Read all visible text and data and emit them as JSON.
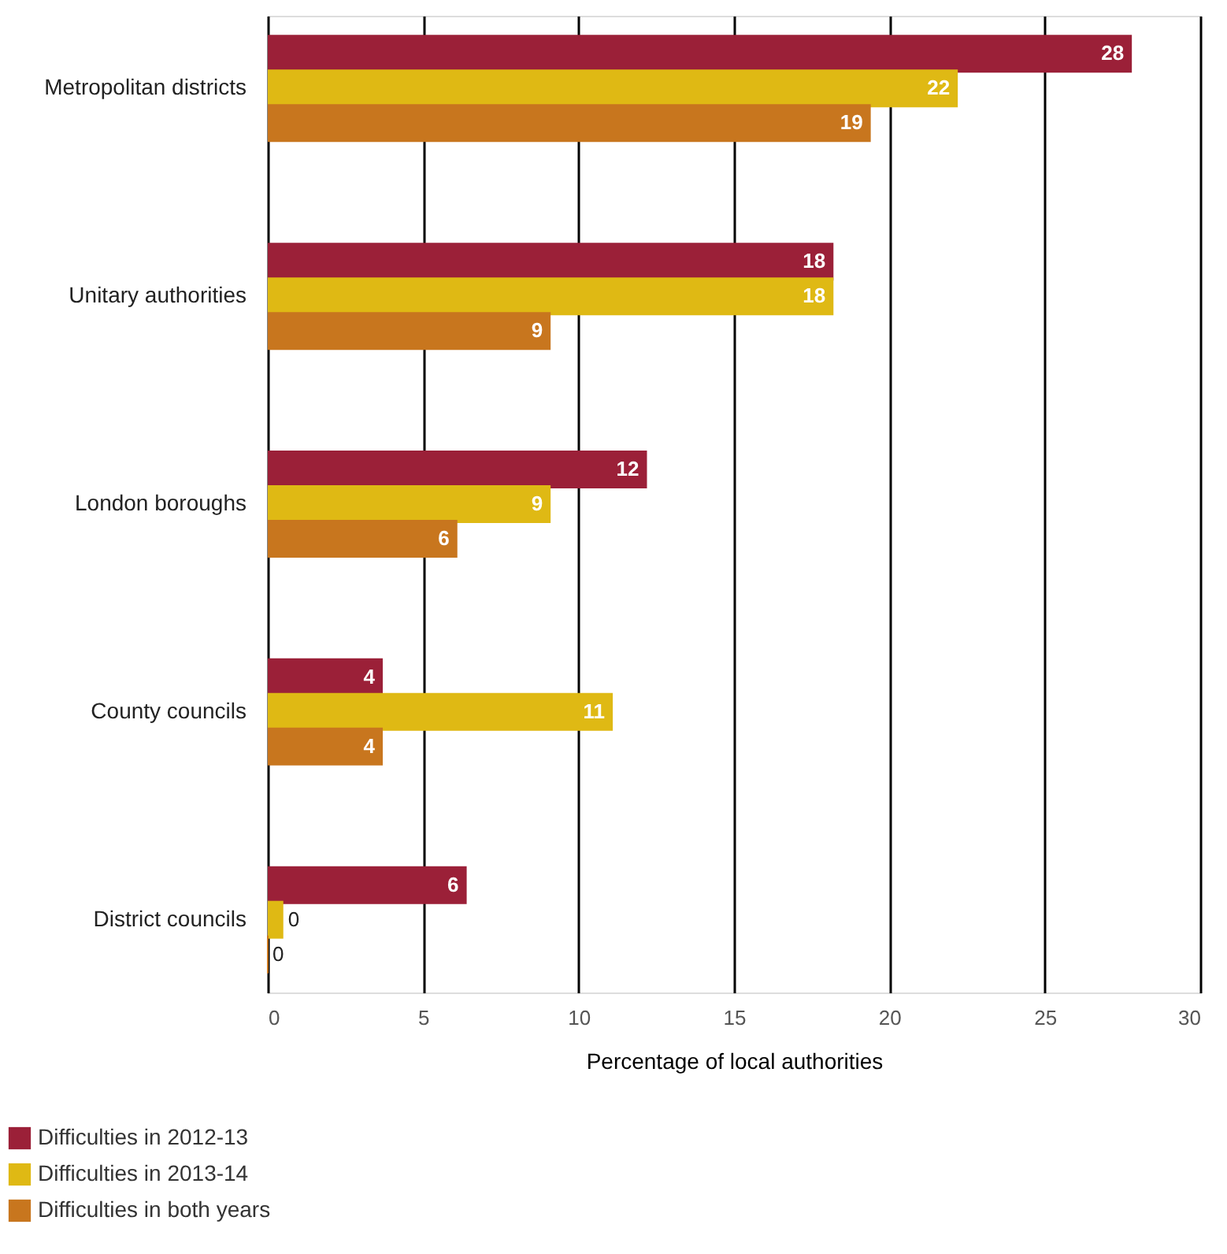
{
  "chart_data": {
    "type": "bar",
    "orientation": "horizontal",
    "xlabel": "Percentage of local authorities",
    "categories": [
      "Metropolitan districts",
      "Unitary authorities",
      "London boroughs",
      "County councils",
      "District councils"
    ],
    "series": [
      {
        "name": "Difficulties in 2012-13",
        "color": "#9b2038",
        "values": [
          27.8,
          18.2,
          12.2,
          3.7,
          6.4
        ],
        "value_labels": [
          "28",
          "18",
          "12",
          "4",
          "6"
        ]
      },
      {
        "name": "Difficulties in 2013-14",
        "color": "#dfb914",
        "values": [
          22.2,
          18.2,
          9.1,
          11.1,
          0.5
        ],
        "value_labels": [
          "22",
          "18",
          "9",
          "11",
          "0"
        ]
      },
      {
        "name": "Difficulties in both years",
        "color": "#c8761e",
        "values": [
          19.4,
          9.1,
          6.1,
          3.7,
          0
        ],
        "value_labels": [
          "19",
          "9",
          "6",
          "4",
          "0"
        ]
      }
    ],
    "xlim": [
      0,
      30
    ],
    "xticks": [
      0,
      5,
      10,
      15,
      20,
      25,
      30
    ],
    "grid": "x",
    "legend": "bottom left"
  }
}
